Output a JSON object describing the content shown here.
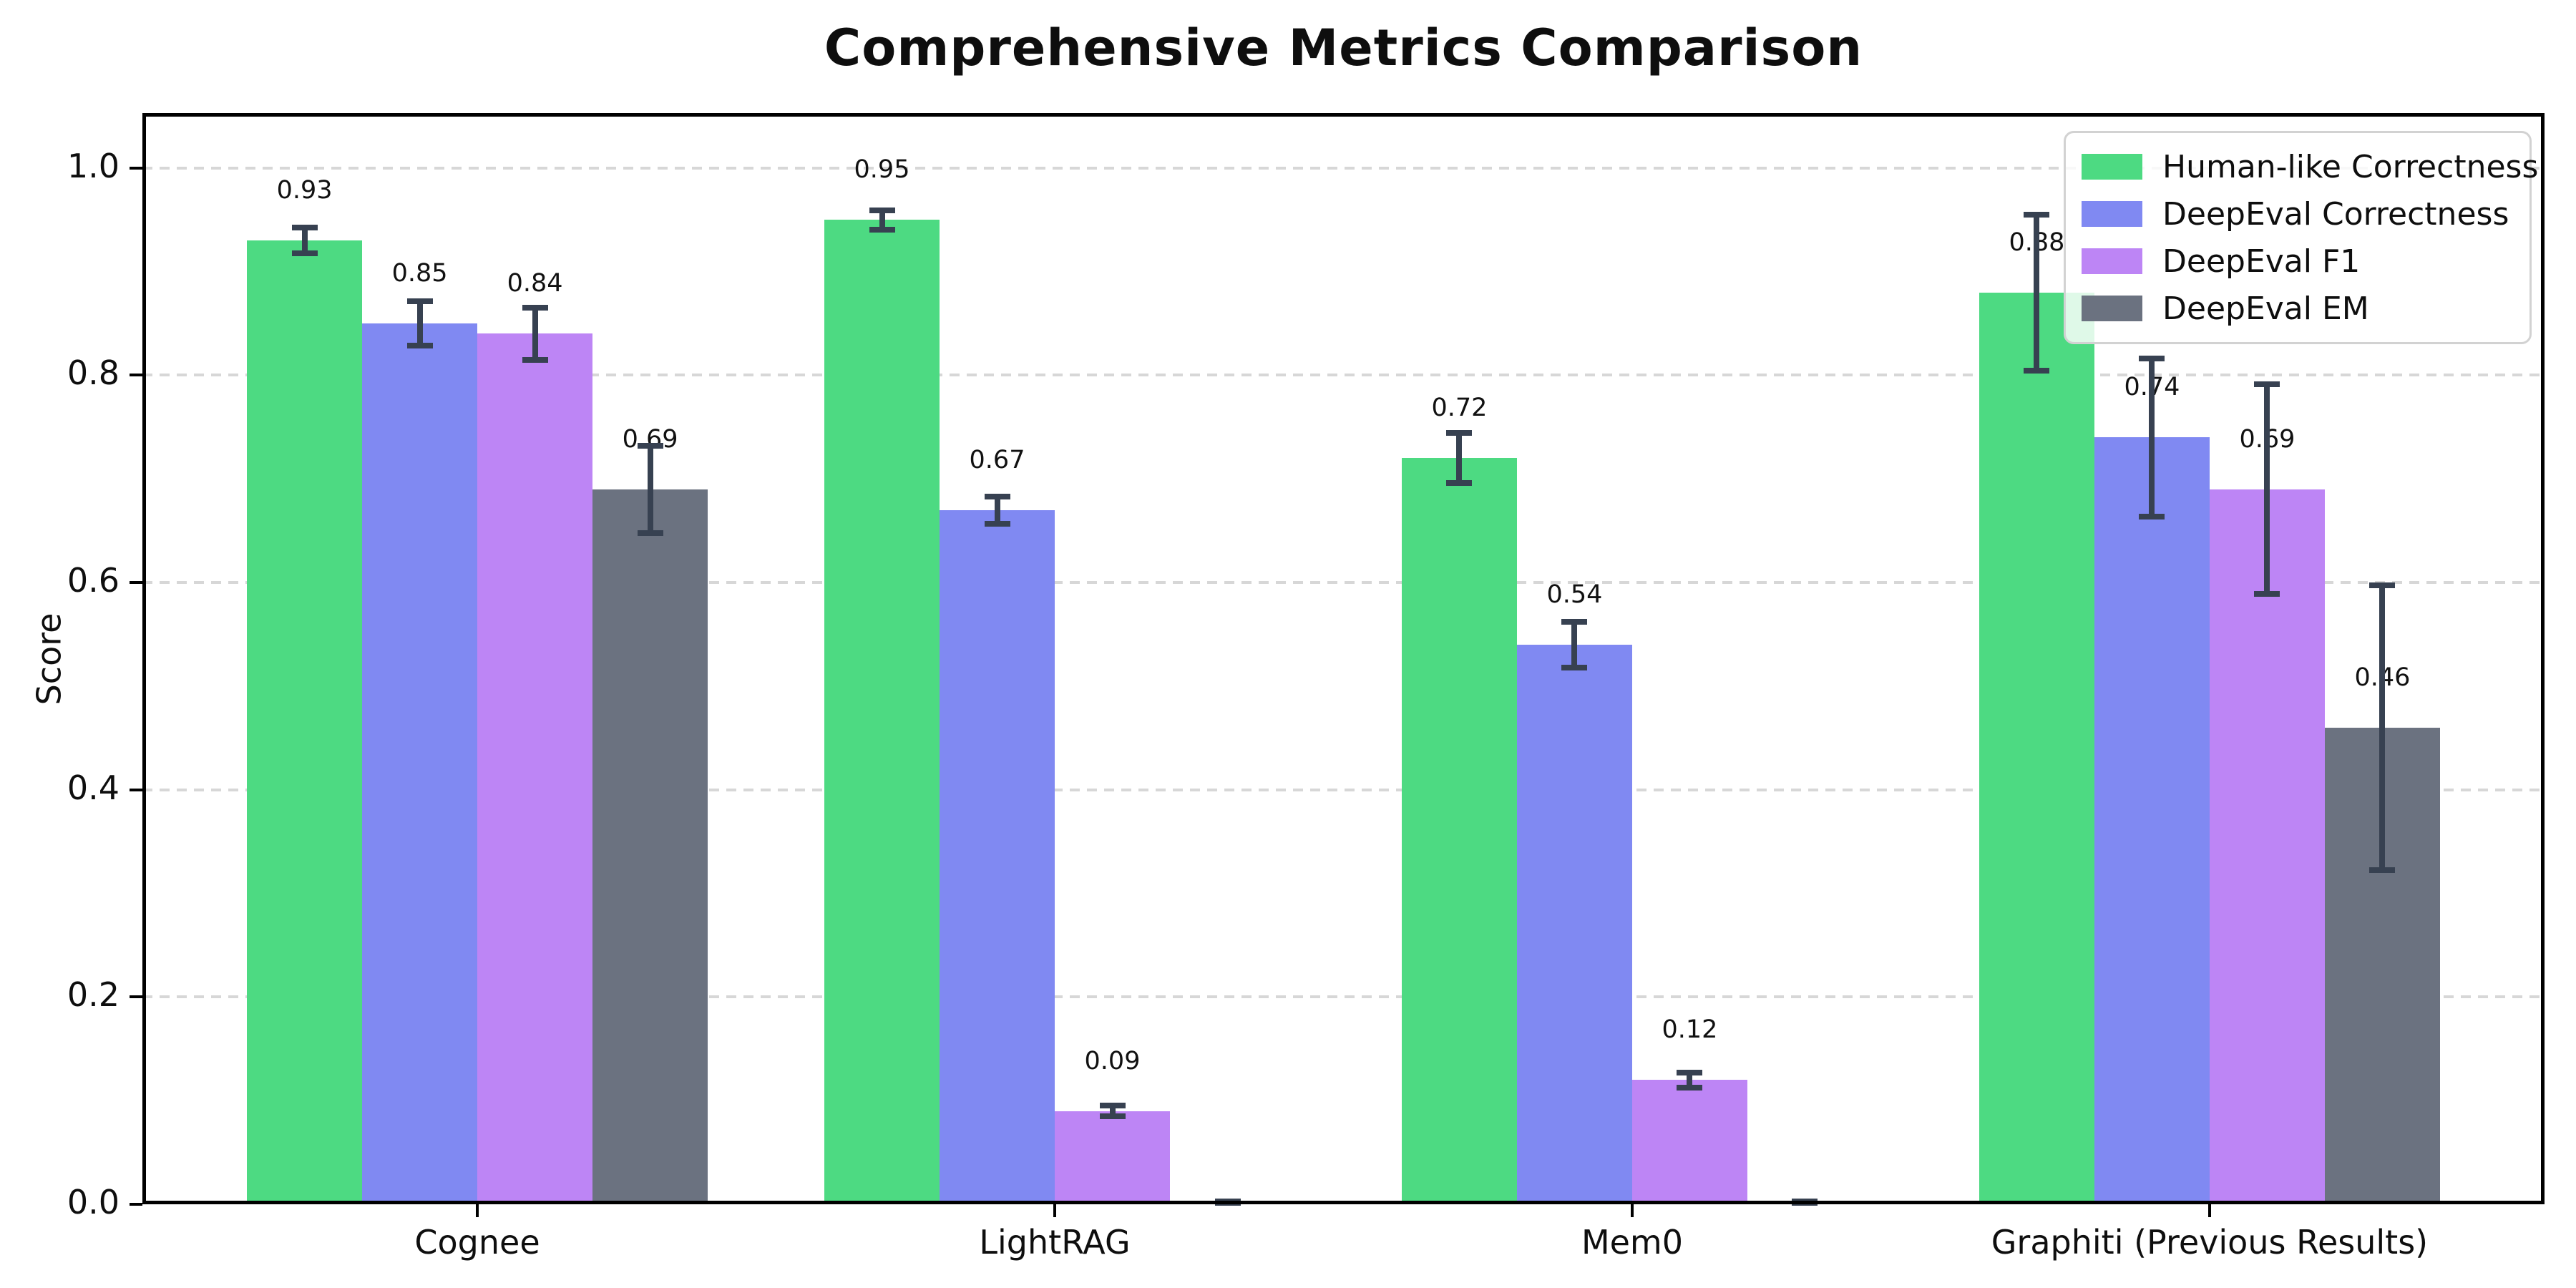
{
  "page": {
    "background": "#ffffff"
  },
  "chart_data": {
    "type": "bar",
    "title": "Comprehensive Metrics Comparison",
    "xlabel": "",
    "ylabel": "Score",
    "categories": [
      "Cognee",
      "LightRAG",
      "Mem0",
      "Graphiti (Previous Results)"
    ],
    "series": [
      {
        "name": "Human-like Correctness",
        "color": "#4dda82",
        "values": [
          0.93,
          0.95,
          0.72,
          0.88
        ],
        "errors": [
          0.015,
          0.012,
          0.027,
          0.078
        ],
        "labels": [
          "0.93",
          "0.95",
          "0.72",
          "0.88"
        ]
      },
      {
        "name": "DeepEval Correctness",
        "color": "#8089f2",
        "values": [
          0.85,
          0.67,
          0.54,
          0.74
        ],
        "errors": [
          0.024,
          0.016,
          0.025,
          0.079
        ],
        "labels": [
          "0.85",
          "0.67",
          "0.54",
          "0.74"
        ]
      },
      {
        "name": "DeepEval F1",
        "color": "#bd85f5",
        "values": [
          0.84,
          0.09,
          0.12,
          0.69
        ],
        "errors": [
          0.028,
          0.008,
          0.01,
          0.104
        ],
        "labels": [
          "0.84",
          "0.09",
          "0.12",
          "0.69"
        ]
      },
      {
        "name": "DeepEval EM",
        "color": "#6b7280",
        "values": [
          0.69,
          0.0,
          0.0,
          0.46
        ],
        "errors": [
          0.045,
          0.004,
          0.004,
          0.14
        ],
        "labels": [
          "0.69",
          "",
          "",
          "0.46"
        ]
      }
    ],
    "yticks": [
      {
        "value": 0.0,
        "label": "0.0"
      },
      {
        "value": 0.2,
        "label": "0.2"
      },
      {
        "value": 0.4,
        "label": "0.4"
      },
      {
        "value": 0.6,
        "label": "0.6"
      },
      {
        "value": 0.8,
        "label": "0.8"
      },
      {
        "value": 1.0,
        "label": "1.0"
      }
    ],
    "ylim": [
      0,
      1.053
    ],
    "grid": "horizontal-dashed",
    "grid_color": "#d7d7d7",
    "legend_position": "upper right",
    "errorbar_color": "#374151",
    "axis_color": "#000000"
  }
}
